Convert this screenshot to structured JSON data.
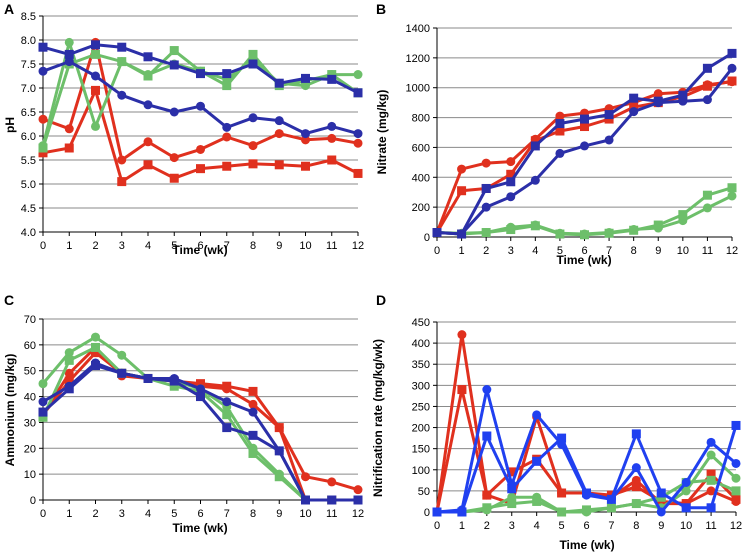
{
  "colors": {
    "red": "#e0301e",
    "green": "#6dbf6a",
    "blue": "#2b2fa8",
    "bright_blue": "#2040f0"
  },
  "chart_data": [
    {
      "panel": "A",
      "type": "line",
      "ylabel": "pH",
      "xlabel": "Time (wk)",
      "x": [
        0,
        1,
        2,
        3,
        4,
        5,
        6,
        7,
        8,
        9,
        10,
        11,
        12
      ],
      "ylim": [
        4.0,
        8.5
      ],
      "yticks": [
        "4.0",
        "4.5",
        "5.0",
        "5.5",
        "6.0",
        "6.5",
        "7.0",
        "7.5",
        "8.0",
        "8.5"
      ],
      "series": [
        {
          "name": "red-circle",
          "color": "red",
          "marker": "circle",
          "values": [
            6.35,
            6.15,
            7.95,
            5.5,
            5.88,
            5.55,
            5.72,
            5.98,
            5.8,
            6.05,
            5.92,
            5.95,
            5.85
          ]
        },
        {
          "name": "red-square",
          "color": "red",
          "marker": "square",
          "values": [
            5.65,
            5.75,
            6.95,
            5.05,
            5.4,
            5.12,
            5.32,
            5.37,
            5.42,
            5.4,
            5.37,
            5.5,
            5.22
          ]
        },
        {
          "name": "green-circle",
          "color": "green",
          "marker": "circle",
          "values": [
            5.8,
            7.95,
            6.2,
            7.55,
            7.28,
            7.5,
            7.35,
            7.18,
            7.6,
            7.1,
            7.05,
            7.28,
            7.28
          ]
        },
        {
          "name": "green-square",
          "color": "green",
          "marker": "square",
          "values": [
            5.75,
            7.5,
            7.7,
            7.55,
            7.25,
            7.78,
            7.35,
            7.05,
            7.7,
            7.05,
            7.15,
            7.28,
            6.9
          ]
        },
        {
          "name": "blue-circle",
          "color": "blue",
          "marker": "circle",
          "values": [
            7.35,
            7.55,
            7.25,
            6.85,
            6.65,
            6.5,
            6.62,
            6.18,
            6.38,
            6.32,
            6.05,
            6.2,
            6.05
          ]
        },
        {
          "name": "blue-square",
          "color": "blue",
          "marker": "square",
          "values": [
            7.85,
            7.7,
            7.9,
            7.85,
            7.65,
            7.48,
            7.3,
            7.3,
            7.5,
            7.1,
            7.2,
            7.18,
            6.9
          ]
        }
      ]
    },
    {
      "panel": "B",
      "type": "line",
      "ylabel": "Nitrate (mg/kg)",
      "xlabel": "Time (wk)",
      "x": [
        0,
        1,
        2,
        3,
        4,
        5,
        6,
        7,
        8,
        9,
        10,
        11,
        12
      ],
      "ylim": [
        0,
        1400
      ],
      "yticks": [
        "0",
        "200",
        "400",
        "600",
        "800",
        "1000",
        "1200",
        "1400"
      ],
      "series": [
        {
          "name": "red-circle",
          "color": "red",
          "marker": "circle",
          "values": [
            30,
            455,
            495,
            505,
            655,
            810,
            830,
            860,
            900,
            960,
            970,
            1020,
            1040
          ]
        },
        {
          "name": "red-square",
          "color": "red",
          "marker": "square",
          "values": [
            30,
            310,
            325,
            420,
            645,
            710,
            740,
            790,
            870,
            900,
            940,
            1010,
            1045
          ]
        },
        {
          "name": "green-circle",
          "color": "green",
          "marker": "circle",
          "values": [
            30,
            25,
            30,
            65,
            80,
            25,
            20,
            30,
            50,
            60,
            110,
            195,
            275
          ]
        },
        {
          "name": "green-square",
          "color": "green",
          "marker": "square",
          "values": [
            30,
            20,
            30,
            50,
            75,
            20,
            15,
            25,
            45,
            80,
            150,
            280,
            330
          ]
        },
        {
          "name": "blue-circle",
          "color": "blue",
          "marker": "circle",
          "values": [
            30,
            20,
            200,
            270,
            380,
            560,
            610,
            650,
            840,
            900,
            910,
            920,
            1130
          ]
        },
        {
          "name": "blue-square",
          "color": "blue",
          "marker": "square",
          "values": [
            30,
            20,
            325,
            370,
            610,
            760,
            790,
            820,
            930,
            910,
            950,
            1130,
            1230
          ]
        }
      ]
    },
    {
      "panel": "C",
      "type": "line",
      "ylabel": "Ammonium (mg/kg)",
      "xlabel": "Time (wk)",
      "x": [
        0,
        1,
        2,
        3,
        4,
        5,
        6,
        7,
        8,
        9,
        10,
        11,
        12
      ],
      "ylim": [
        0,
        70
      ],
      "yticks": [
        "0",
        "10",
        "20",
        "30",
        "40",
        "50",
        "60",
        "70"
      ],
      "series": [
        {
          "name": "red-circle",
          "color": "red",
          "marker": "circle",
          "values": [
            33,
            49,
            59,
            48,
            47,
            46,
            44,
            43,
            37,
            28,
            9,
            7,
            4
          ]
        },
        {
          "name": "red-square",
          "color": "red",
          "marker": "square",
          "values": [
            33,
            46,
            57,
            49,
            47,
            46,
            45,
            44,
            42,
            28,
            0,
            0,
            0
          ]
        },
        {
          "name": "green-circle",
          "color": "green",
          "marker": "circle",
          "values": [
            45,
            57,
            63,
            56,
            47,
            46,
            43,
            36,
            20,
            10,
            0,
            0,
            0
          ]
        },
        {
          "name": "green-square",
          "color": "green",
          "marker": "square",
          "values": [
            32,
            54,
            59,
            49,
            47,
            44,
            42,
            33,
            18,
            9,
            0,
            0,
            0
          ]
        },
        {
          "name": "blue-circle",
          "color": "blue",
          "marker": "circle",
          "values": [
            38,
            44,
            53,
            49,
            47,
            47,
            43,
            38,
            34,
            19,
            0,
            0,
            0
          ]
        },
        {
          "name": "blue-square",
          "color": "blue",
          "marker": "square",
          "values": [
            34,
            43,
            52,
            49,
            47,
            46,
            40,
            28,
            25,
            19,
            0,
            0,
            0
          ]
        }
      ]
    },
    {
      "panel": "D",
      "type": "line",
      "ylabel": "Nitrification rate (mg/kg/wk)",
      "xlabel": "Time (wk)",
      "x": [
        0,
        1,
        2,
        3,
        4,
        5,
        6,
        7,
        8,
        9,
        10,
        11,
        12
      ],
      "ylim": [
        0,
        450
      ],
      "yticks": [
        "0",
        "50",
        "100",
        "150",
        "200",
        "250",
        "300",
        "350",
        "400",
        "450"
      ],
      "series": [
        {
          "name": "red-circle",
          "color": "red",
          "marker": "circle",
          "values": [
            0,
            420,
            40,
            20,
            225,
            45,
            45,
            35,
            75,
            20,
            20,
            50,
            25
          ]
        },
        {
          "name": "red-square",
          "color": "red",
          "marker": "square",
          "values": [
            0,
            290,
            40,
            95,
            125,
            45,
            45,
            40,
            60,
            25,
            20,
            90,
            30
          ]
        },
        {
          "name": "green-circle",
          "color": "green",
          "marker": "circle",
          "values": [
            0,
            0,
            5,
            35,
            35,
            0,
            0,
            10,
            20,
            10,
            50,
            135,
            80
          ]
        },
        {
          "name": "green-square",
          "color": "green",
          "marker": "square",
          "values": [
            0,
            0,
            10,
            20,
            25,
            0,
            5,
            10,
            20,
            35,
            70,
            75,
            50
          ]
        },
        {
          "name": "blue-circle",
          "color": "bright_blue",
          "marker": "circle",
          "values": [
            0,
            5,
            290,
            65,
            230,
            160,
            40,
            30,
            105,
            0,
            70,
            165,
            115
          ]
        },
        {
          "name": "blue-square",
          "color": "bright_blue",
          "marker": "square",
          "values": [
            0,
            0,
            180,
            55,
            120,
            175,
            45,
            30,
            185,
            45,
            10,
            10,
            205
          ]
        }
      ]
    }
  ]
}
